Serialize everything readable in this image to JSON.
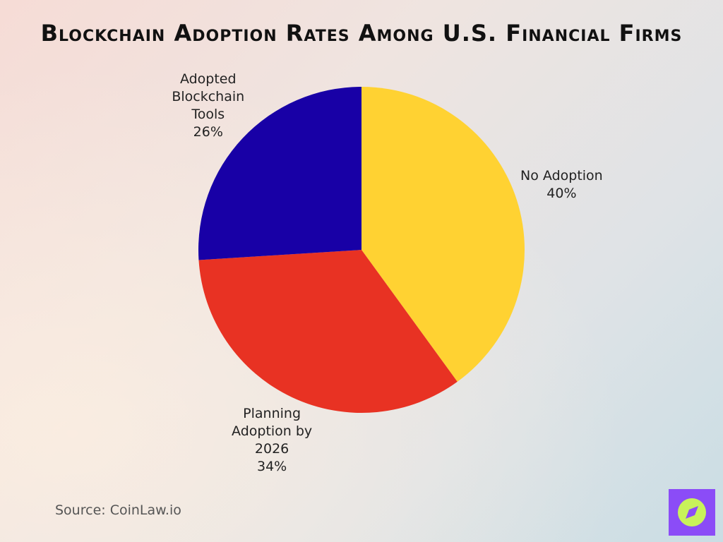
{
  "chart_data": {
    "type": "pie",
    "title": "Blockchain Adoption Rates Among U.S. Financial Firms",
    "categories": [
      "No Adoption",
      "Planning Adoption by 2026",
      "Adopted Blockchain Tools"
    ],
    "values": [
      40,
      34,
      26
    ],
    "value_labels": [
      "40%",
      "34%",
      "26%"
    ],
    "colors": [
      "#ffd232",
      "#e83223",
      "#1800a6"
    ],
    "source": "Source: CoinLaw.io"
  }
}
